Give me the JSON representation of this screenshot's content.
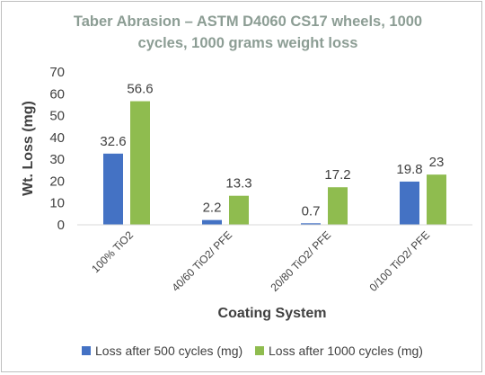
{
  "chart_data": {
    "type": "bar",
    "title_lines": [
      "Taber Abrasion – ASTM D4060   CS17 wheels, 1000",
      "cycles, 1000 grams weight loss"
    ],
    "categories": [
      "100% TiO2",
      "40/60 TiO2/ PFE",
      "20/80 TiO2/ PFE",
      "0/100 TiO2/ PFE"
    ],
    "series": [
      {
        "name": "Loss after 500 cycles (mg)",
        "values": [
          32.6,
          2.2,
          0.7,
          19.8
        ],
        "labels": [
          "32.6",
          "2.2",
          "0.7",
          "19.8"
        ],
        "color": "#4472c4"
      },
      {
        "name": "Loss after 1000 cycles (mg)",
        "values": [
          56.6,
          13.3,
          17.2,
          23
        ],
        "labels": [
          "56.6",
          "13.3",
          "17.2",
          "23"
        ],
        "color": "#8fbc4f"
      }
    ],
    "yticks": [
      "0",
      "10",
      "20",
      "30",
      "40",
      "50",
      "60",
      "70"
    ],
    "ylim": [
      0,
      70
    ],
    "xlabel": "Coating System",
    "ylabel": "Wt. Loss (mg)",
    "grid": false,
    "legend_position": "bottom"
  }
}
